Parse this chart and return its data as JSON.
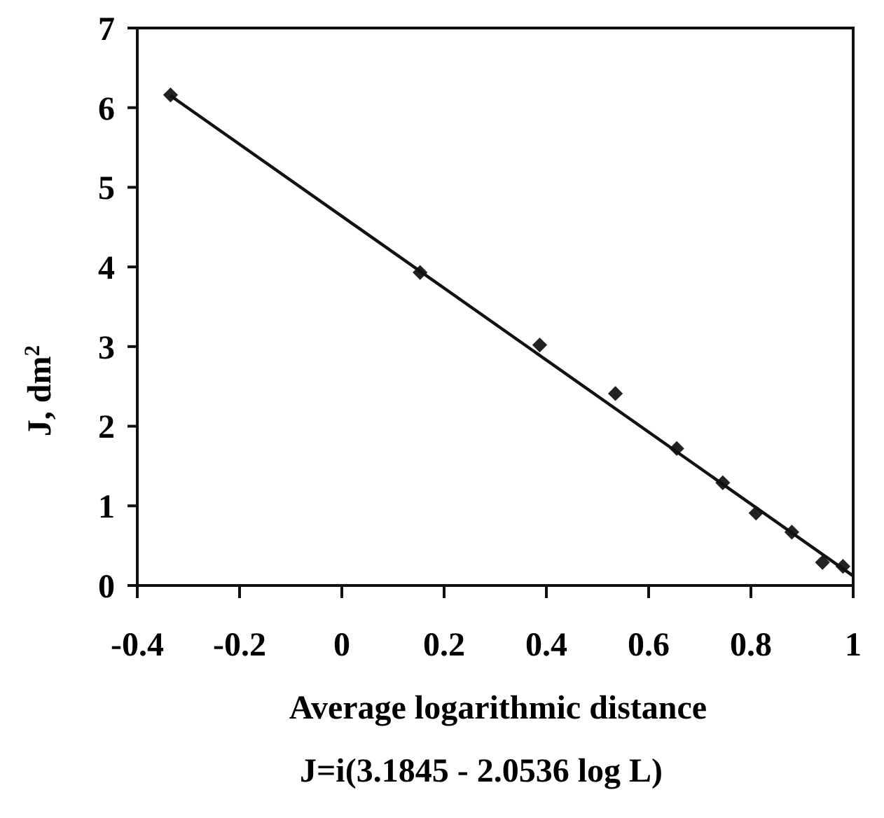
{
  "chart_data": {
    "type": "scatter",
    "xlabel": "Average logarithmic distance",
    "ylabel": "J, dm$^{2}$",
    "annotations": [
      "J=i(3.1845 - 2.0536 log L)"
    ],
    "marker": "diamond",
    "grid": false,
    "xlim": [
      -0.4,
      1
    ],
    "xticks": [
      -0.4,
      -0.2,
      0,
      0.2,
      0.4,
      0.6,
      0.8,
      1
    ],
    "ylim": [
      0,
      7
    ],
    "yticks": [
      0,
      1,
      2,
      3,
      4,
      5,
      6,
      7
    ],
    "series": [
      {
        "color": "#222222",
        "x": [
          -0.335,
          0.153,
          0.387,
          0.535,
          0.655,
          0.745,
          0.81,
          0.88,
          0.94,
          0.98
        ],
        "values": [
          6.16,
          3.93,
          3.02,
          2.41,
          1.72,
          1.29,
          0.91,
          0.67,
          0.29,
          0.24
        ]
      },
      {
        "type": "line",
        "color": "#111111",
        "line_style": "solid",
        "marker": "none",
        "x": [
          -0.335,
          1.0
        ],
        "values": [
          6.15,
          0.12
        ]
      }
    ]
  }
}
